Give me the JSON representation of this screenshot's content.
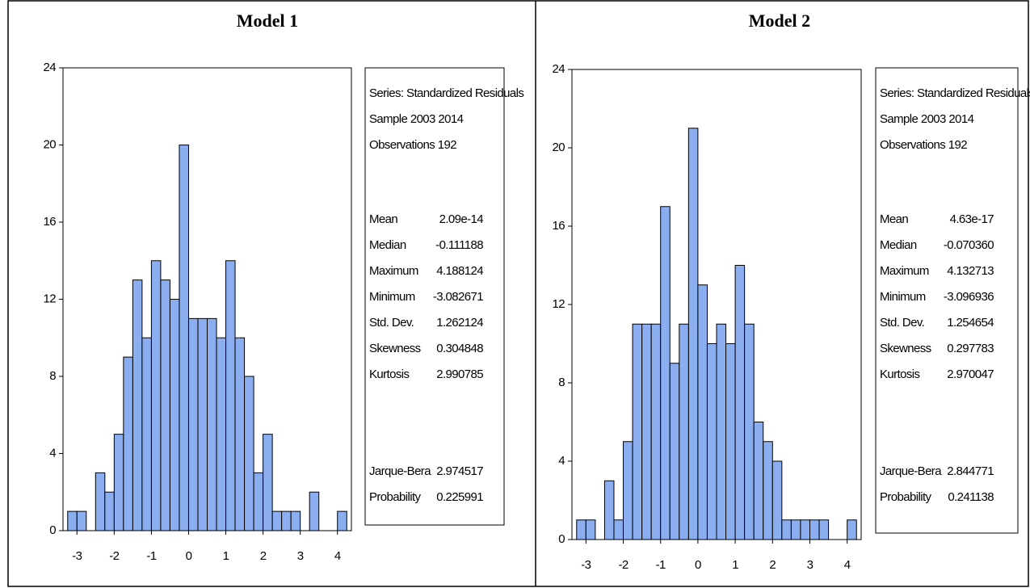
{
  "chart_data": [
    {
      "type": "histogram",
      "title": "Model 1",
      "color": "#8aaef0",
      "bins": [
        -3.25,
        -3.0,
        -2.75,
        -2.5,
        -2.25,
        -2.0,
        -1.75,
        -1.5,
        -1.25,
        -1.0,
        -0.75,
        -0.5,
        -0.25,
        0.0,
        0.25,
        0.5,
        0.75,
        1.0,
        1.25,
        1.5,
        1.75,
        2.0,
        2.25,
        2.5,
        2.75,
        3.0,
        3.25,
        3.5,
        3.75,
        4.0,
        4.25
      ],
      "values": [
        1,
        1,
        0,
        3,
        2,
        5,
        9,
        13,
        10,
        14,
        13,
        12,
        20,
        11,
        11,
        11,
        10,
        14,
        10,
        8,
        3,
        5,
        1,
        1,
        1,
        0,
        2,
        0,
        0,
        1
      ],
      "xlim": [
        -3.375,
        4.375
      ],
      "ylim": [
        0,
        24
      ],
      "xticks": [
        -3,
        -2,
        -1,
        0,
        1,
        2,
        3,
        4
      ],
      "yticks": [
        0,
        4,
        8,
        12,
        16,
        20,
        24
      ],
      "stats": {
        "header": [
          "Series: Standardized Residuals",
          "Sample 2003 2014",
          "Observations 192"
        ],
        "rows": [
          {
            "label": "Mean",
            "value": "2.09e-14"
          },
          {
            "label": "Median",
            "value": "-0.111188"
          },
          {
            "label": "Maximum",
            "value": "4.188124"
          },
          {
            "label": "Minimum",
            "value": "-3.082671"
          },
          {
            "label": "Std. Dev.",
            "value": "1.262124"
          },
          {
            "label": "Skewness",
            "value": "0.304848"
          },
          {
            "label": "Kurtosis",
            "value": "2.990785"
          }
        ],
        "tests": [
          {
            "label": "Jarque-Bera",
            "value": "2.974517"
          },
          {
            "label": "Probability",
            "value": "0.225991"
          }
        ]
      }
    },
    {
      "type": "histogram",
      "title": "Model 2",
      "color": "#8aaef0",
      "bins": [
        -3.25,
        -3.0,
        -2.75,
        -2.5,
        -2.25,
        -2.0,
        -1.75,
        -1.5,
        -1.25,
        -1.0,
        -0.75,
        -0.5,
        -0.25,
        0.0,
        0.25,
        0.5,
        0.75,
        1.0,
        1.25,
        1.5,
        1.75,
        2.0,
        2.25,
        2.5,
        2.75,
        3.0,
        3.25,
        3.5,
        3.75,
        4.0,
        4.25
      ],
      "values": [
        1,
        1,
        0,
        3,
        1,
        5,
        11,
        11,
        11,
        17,
        9,
        11,
        21,
        13,
        10,
        11,
        10,
        14,
        11,
        6,
        5,
        4,
        1,
        1,
        1,
        1,
        1,
        0,
        0,
        1
      ],
      "xlim": [
        -3.375,
        4.375
      ],
      "ylim": [
        0,
        24
      ],
      "xticks": [
        -3,
        -2,
        -1,
        0,
        1,
        2,
        3,
        4
      ],
      "yticks": [
        0,
        4,
        8,
        12,
        16,
        20,
        24
      ],
      "stats": {
        "header": [
          "Series: Standardized Residuals",
          "Sample 2003 2014",
          "Observations 192"
        ],
        "rows": [
          {
            "label": "Mean",
            "value": "4.63e-17"
          },
          {
            "label": "Median",
            "value": "-0.070360"
          },
          {
            "label": "Maximum",
            "value": "4.132713"
          },
          {
            "label": "Minimum",
            "value": "-3.096936"
          },
          {
            "label": "Std. Dev.",
            "value": "1.254654"
          },
          {
            "label": "Skewness",
            "value": "0.297783"
          },
          {
            "label": "Kurtosis",
            "value": "2.970047"
          }
        ],
        "tests": [
          {
            "label": "Jarque-Bera",
            "value": "2.844771"
          },
          {
            "label": "Probability",
            "value": "0.241138"
          }
        ]
      }
    }
  ]
}
